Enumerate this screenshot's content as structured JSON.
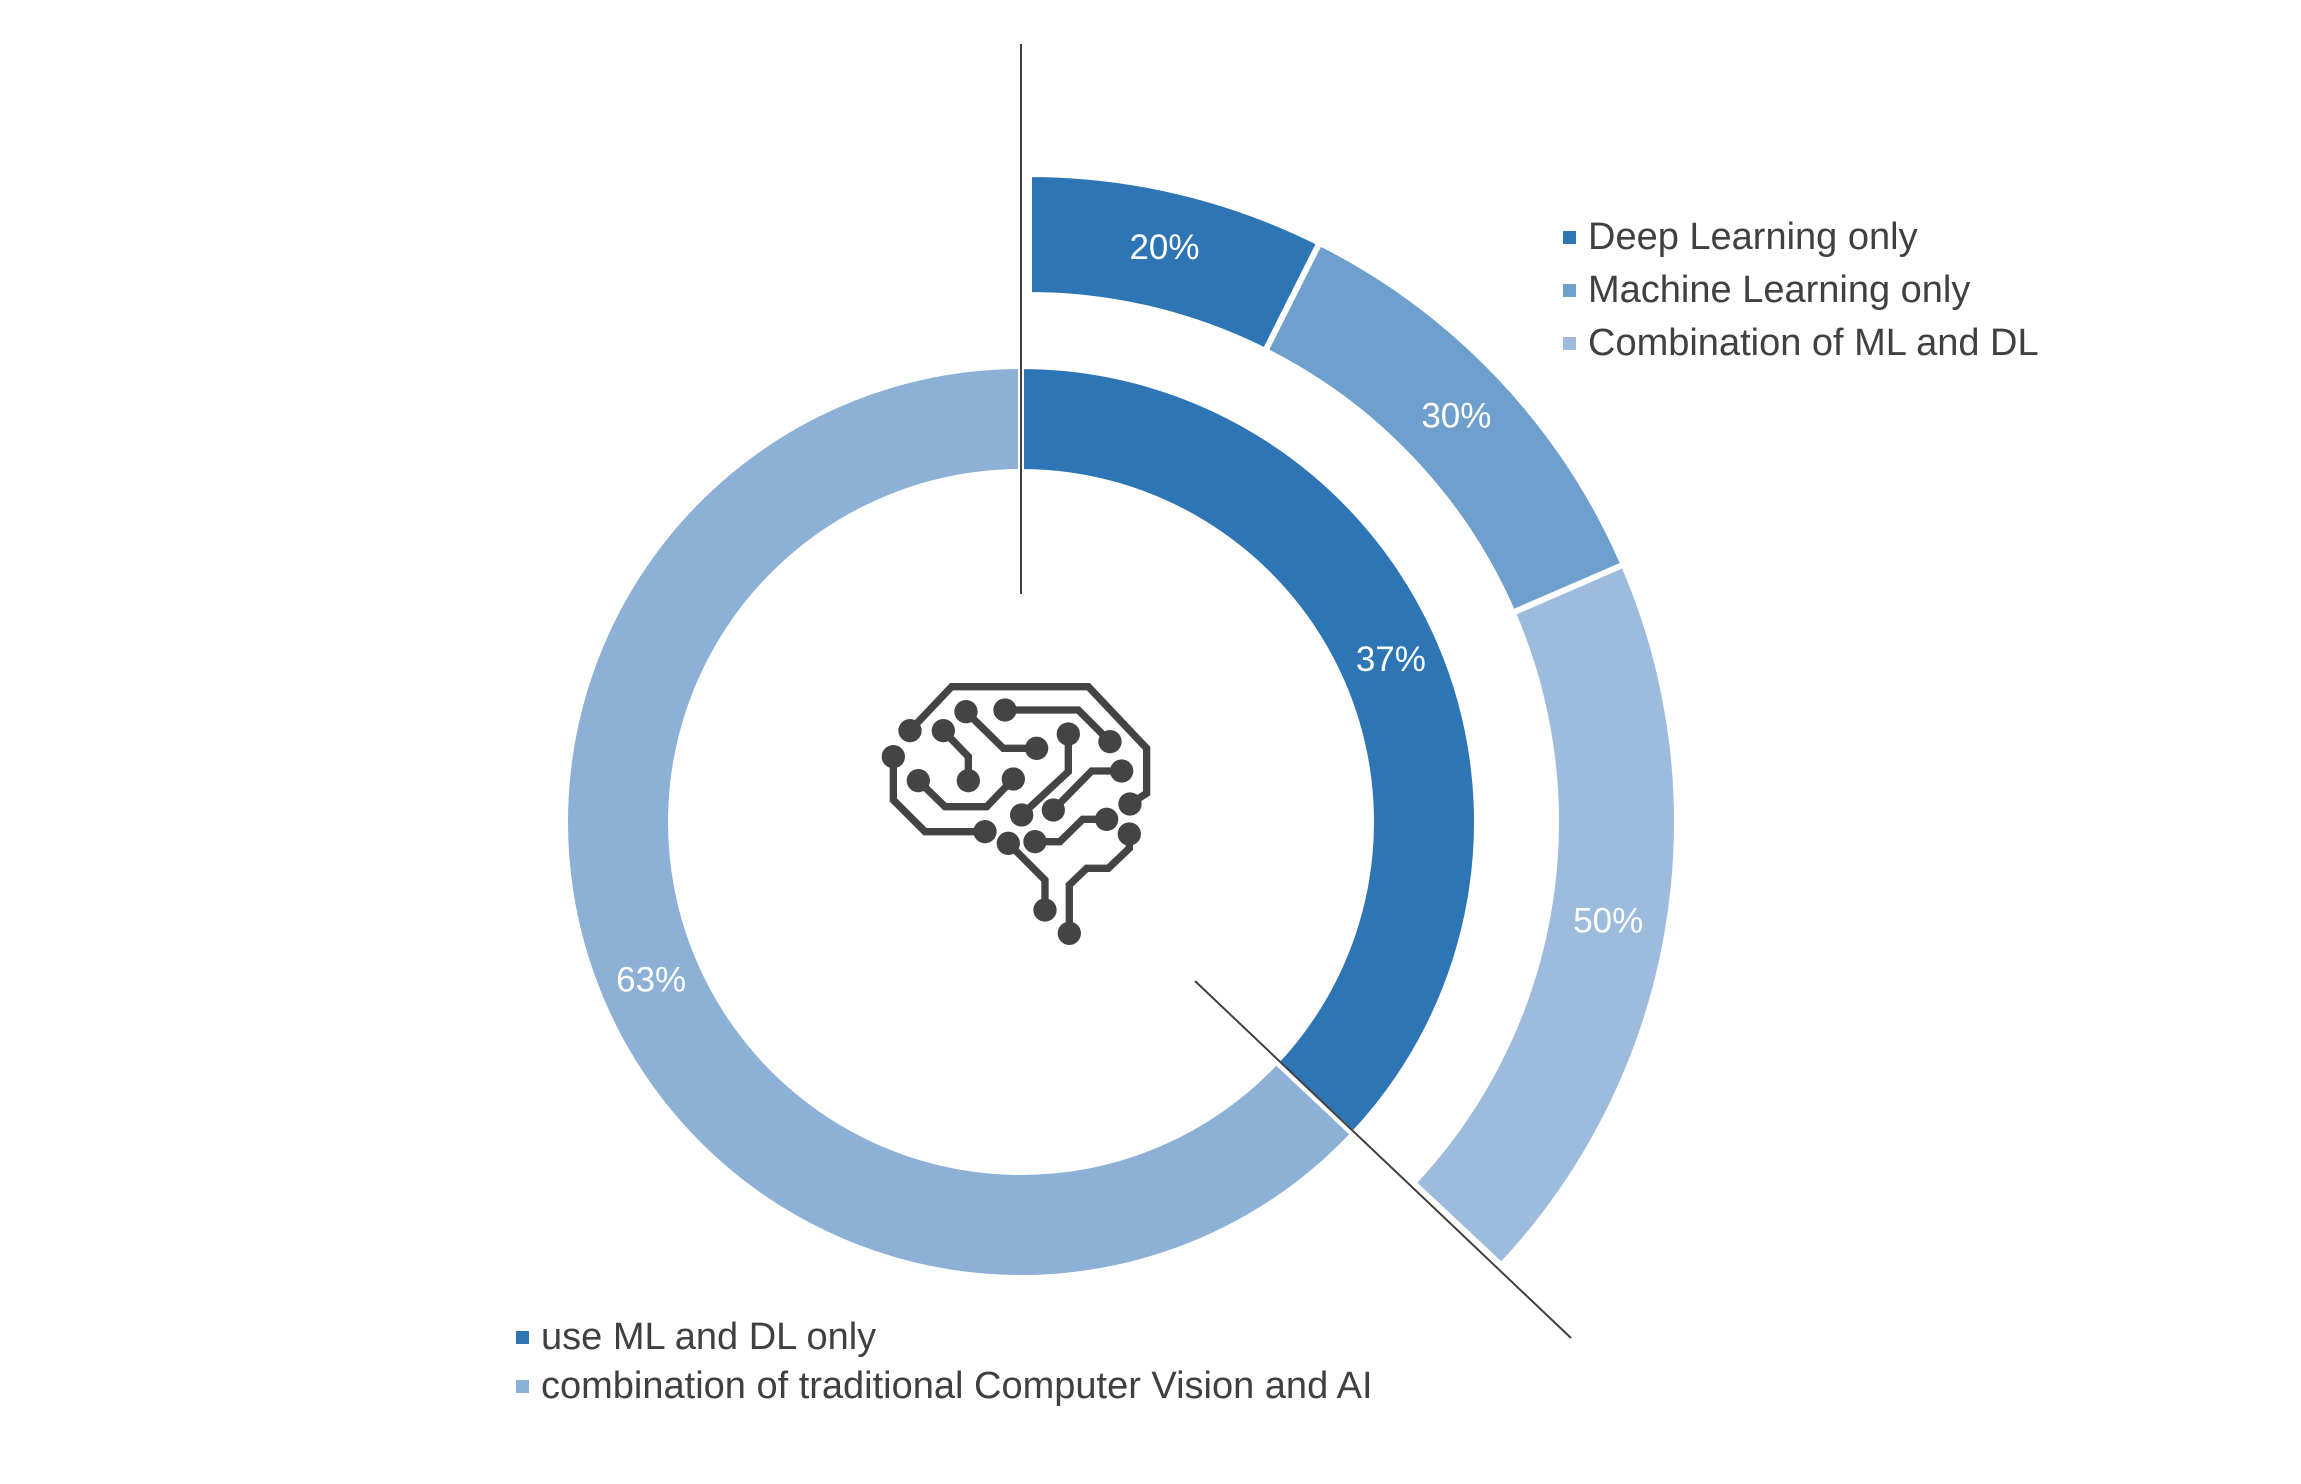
{
  "chart_data": {
    "type": "pie",
    "subtype": "bar-of-doughnut",
    "inner_ring": {
      "categories": [
        "use ML and DL only",
        "combination of traditional Computer Vision and AI"
      ],
      "values": [
        37,
        63
      ],
      "labels": [
        "37%",
        "63%"
      ],
      "colors": [
        "#2E75B6",
        "#8CB0D6"
      ]
    },
    "outer_ring": {
      "expands": "use ML and DL only",
      "categories": [
        "Deep Learning only",
        "Machine Learning only",
        "Combination of ML and DL"
      ],
      "values": [
        20,
        30,
        50
      ],
      "labels": [
        "20%",
        "30%",
        "50%"
      ],
      "colors": [
        "#2E75B6",
        "#6F9FCD",
        "#9DBBDC"
      ]
    },
    "legend_outer_placement": "top-right",
    "legend_inner_placement": "bottom-left",
    "center_icon": "brain-circuit-icon"
  }
}
